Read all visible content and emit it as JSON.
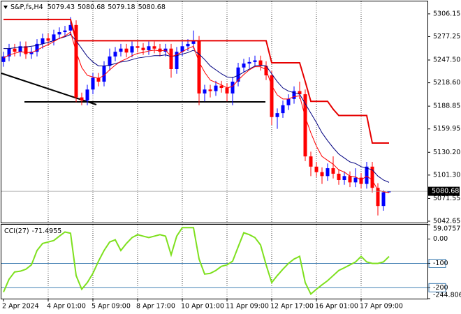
{
  "chart_data": [
    {
      "type": "candlestick",
      "title": "S&P,fs,H4",
      "categories": [
        "2 Apr 2024",
        null,
        null,
        null,
        null,
        null,
        null,
        null,
        "4 Apr 01:00",
        null,
        null,
        null,
        null,
        null,
        null,
        null,
        "5 Apr 09:00",
        null,
        null,
        null,
        null,
        null,
        null,
        null,
        "8 Apr 17:00",
        null,
        null,
        null,
        null,
        null,
        null,
        null,
        "10 Apr 01:00",
        null,
        null,
        null,
        null,
        null,
        null,
        null,
        "11 Apr 09:00",
        null,
        null,
        null,
        null,
        null,
        null,
        null,
        "12 Apr 17:00",
        null,
        null,
        null,
        null,
        null,
        null,
        null,
        "16 Apr 01:00",
        null,
        null,
        null,
        null,
        null,
        null,
        null,
        "17 Apr 09:00",
        null,
        null,
        null,
        null,
        null
      ],
      "open": [
        5245,
        5252,
        5262,
        5258,
        5265,
        5255,
        5258,
        5268,
        5275,
        5272,
        5280,
        5283,
        5285,
        5292,
        5200,
        5196,
        5210,
        5225,
        5220,
        5240,
        5252,
        5258,
        5262,
        5257,
        5265,
        5263,
        5260,
        5265,
        5262,
        5258,
        5262,
        5236,
        5258,
        5265,
        5268,
        5272,
        5205,
        5210,
        5208,
        5215,
        5212,
        5205,
        5220,
        5238,
        5243,
        5245,
        5247,
        5240,
        5228,
        5175,
        5180,
        5190,
        5198,
        5208,
        5204,
        5125,
        5112,
        5105,
        5100,
        5110,
        5103,
        5095,
        5100,
        5092,
        5098,
        5090,
        5112,
        5085,
        5062,
        5079.43
      ],
      "high": [
        5258,
        5268,
        5268,
        5271,
        5271,
        5264,
        5274,
        5281,
        5281,
        5286,
        5289,
        5291,
        5302,
        5298,
        5206,
        5216,
        5231,
        5231,
        5246,
        5262,
        5264,
        5268,
        5268,
        5271,
        5271,
        5269,
        5271,
        5271,
        5268,
        5268,
        5268,
        5264,
        5271,
        5274,
        5285,
        5278,
        5216,
        5216,
        5221,
        5221,
        5218,
        5226,
        5244,
        5249,
        5251,
        5253,
        5253,
        5246,
        5234,
        5186,
        5196,
        5204,
        5214,
        5220,
        5210,
        5131,
        5118,
        5111,
        5116,
        5125,
        5109,
        5106,
        5106,
        5110,
        5104,
        5118,
        5118,
        5091,
        5082,
        5080.68
      ],
      "low": [
        5239,
        5246,
        5252,
        5252,
        5249,
        5249,
        5252,
        5262,
        5266,
        5266,
        5274,
        5277,
        5279,
        5194,
        5190,
        5190,
        5204,
        5214,
        5214,
        5234,
        5246,
        5252,
        5251,
        5251,
        5257,
        5254,
        5254,
        5256,
        5252,
        5252,
        5225,
        5230,
        5252,
        5259,
        5262,
        5190,
        5195,
        5200,
        5202,
        5206,
        5195,
        5190,
        5214,
        5232,
        5237,
        5239,
        5234,
        5222,
        5165,
        5160,
        5174,
        5184,
        5192,
        5198,
        5119,
        5100,
        5099,
        5090,
        5094,
        5097,
        5089,
        5089,
        5086,
        5086,
        5084,
        5084,
        5079,
        5050,
        5056,
        5079.18
      ],
      "close": [
        5252,
        5262,
        5258,
        5265,
        5255,
        5258,
        5268,
        5275,
        5272,
        5280,
        5283,
        5285,
        5292,
        5200,
        5196,
        5210,
        5225,
        5220,
        5240,
        5252,
        5258,
        5262,
        5257,
        5265,
        5263,
        5260,
        5265,
        5262,
        5258,
        5262,
        5236,
        5258,
        5265,
        5268,
        5272,
        5205,
        5210,
        5208,
        5215,
        5212,
        5205,
        5220,
        5238,
        5243,
        5245,
        5247,
        5240,
        5228,
        5175,
        5180,
        5190,
        5198,
        5208,
        5204,
        5125,
        5112,
        5105,
        5100,
        5110,
        5103,
        5095,
        5100,
        5092,
        5098,
        5090,
        5112,
        5085,
        5062,
        5079.43,
        5080.68
      ],
      "up_color": "#0000ff",
      "down_color": "#ff0000",
      "lines": [
        {
          "color": "#000080",
          "width": 1,
          "values": [
            5262,
            5262,
            5263,
            5264,
            5264,
            5265,
            5266,
            5268,
            5270,
            5272,
            5275,
            5277,
            5280,
            5272,
            5262,
            5252,
            5245,
            5240,
            5240,
            5241,
            5243,
            5245,
            5246,
            5248,
            5250,
            5251,
            5252,
            5253,
            5253,
            5254,
            5252,
            5253,
            5255,
            5257,
            5260,
            5255,
            5248,
            5240,
            5235,
            5230,
            5226,
            5225,
            5228,
            5232,
            5236,
            5240,
            5241,
            5240,
            5230,
            5220,
            5212,
            5208,
            5206,
            5204,
            5192,
            5180,
            5168,
            5155,
            5145,
            5136,
            5128,
            5123,
            5118,
            5116,
            5112,
            5110,
            5108,
            5100,
            5095,
            5092
          ]
        },
        {
          "color": "#ff0000",
          "width": 1,
          "values": [
            5250,
            5254,
            5256,
            5258,
            5257,
            5257,
            5260,
            5264,
            5267,
            5271,
            5275,
            5278,
            5283,
            5258,
            5238,
            5228,
            5226,
            5224,
            5228,
            5235,
            5241,
            5246,
            5249,
            5253,
            5256,
            5257,
            5259,
            5260,
            5259,
            5260,
            5252,
            5254,
            5258,
            5262,
            5265,
            5245,
            5232,
            5222,
            5219,
            5216,
            5212,
            5214,
            5222,
            5229,
            5235,
            5239,
            5239,
            5235,
            5215,
            5203,
            5198,
            5198,
            5201,
            5202,
            5175,
            5155,
            5138,
            5125,
            5120,
            5115,
            5108,
            5105,
            5100,
            5099,
            5095,
            5100,
            5095,
            5082,
            5080,
            5079
          ]
        },
        {
          "color": "#e60000",
          "width": 2,
          "values": [
            5299,
            5299,
            5299,
            5299,
            5299,
            5299,
            5299,
            5299,
            5299,
            5299,
            5299,
            5299,
            5299,
            5272,
            5272,
            5272,
            5272,
            5272,
            5272,
            5272,
            5272,
            5272,
            5272,
            5272,
            5272,
            5272,
            5272,
            5272,
            5272,
            5272,
            5272,
            5272,
            5272,
            5272,
            5272,
            5272,
            5272,
            5272,
            5272,
            5272,
            5272,
            5272,
            5272,
            5272,
            5272,
            5272,
            5272,
            5272,
            5244,
            5244,
            5244,
            5244,
            5244,
            5244,
            5220,
            5195,
            5195,
            5195,
            5195,
            5185,
            5177,
            5177,
            5177,
            5177,
            5177,
            5177,
            5142,
            5142,
            5142,
            5142
          ]
        }
      ],
      "ylim": [
        5040,
        5322
      ],
      "yticks": [
        5306.15,
        5277.25,
        {
          "value": 5247.5,
          "label": "5247.50"
        },
        {
          "value": 5218.6,
          "label": "5218.60"
        },
        5188.85,
        5159.95,
        {
          "value": 5130.2,
          "label": "5130.20"
        },
        {
          "value": 5101.3,
          "label": "5101.30"
        },
        5071.55,
        5042.65
      ],
      "grid": true
    },
    {
      "type": "line",
      "title": "CCI(27)",
      "color": "#7ee01e",
      "values": [
        -218,
        -165,
        -135,
        -132,
        -124,
        -106,
        -47,
        -18,
        -12,
        -6,
        12,
        29,
        24,
        -150,
        -206,
        -179,
        -141,
        -91,
        -47,
        -12,
        -3,
        -47,
        -18,
        6,
        18,
        12,
        6,
        12,
        18,
        12,
        -65,
        12,
        47,
        47,
        47,
        -82,
        -144,
        -141,
        -129,
        -112,
        -106,
        -91,
        -32,
        26,
        18,
        6,
        -24,
        -106,
        -179,
        -150,
        -124,
        -100,
        -82,
        -71,
        -179,
        -226,
        -206,
        -188,
        -171,
        -150,
        -129,
        -118,
        -106,
        -94,
        -71,
        -94,
        -100,
        -100,
        -94,
        -71.4955
      ],
      "ylim": [
        -244.8067,
        59.0757
      ],
      "yticks": [
        59.0757,
        {
          "value": 0,
          "label": "0.00"
        },
        -100,
        -200,
        -244.8067
      ],
      "levels": [
        -100,
        -200
      ],
      "level_color": "#4682b4"
    }
  ]
}
